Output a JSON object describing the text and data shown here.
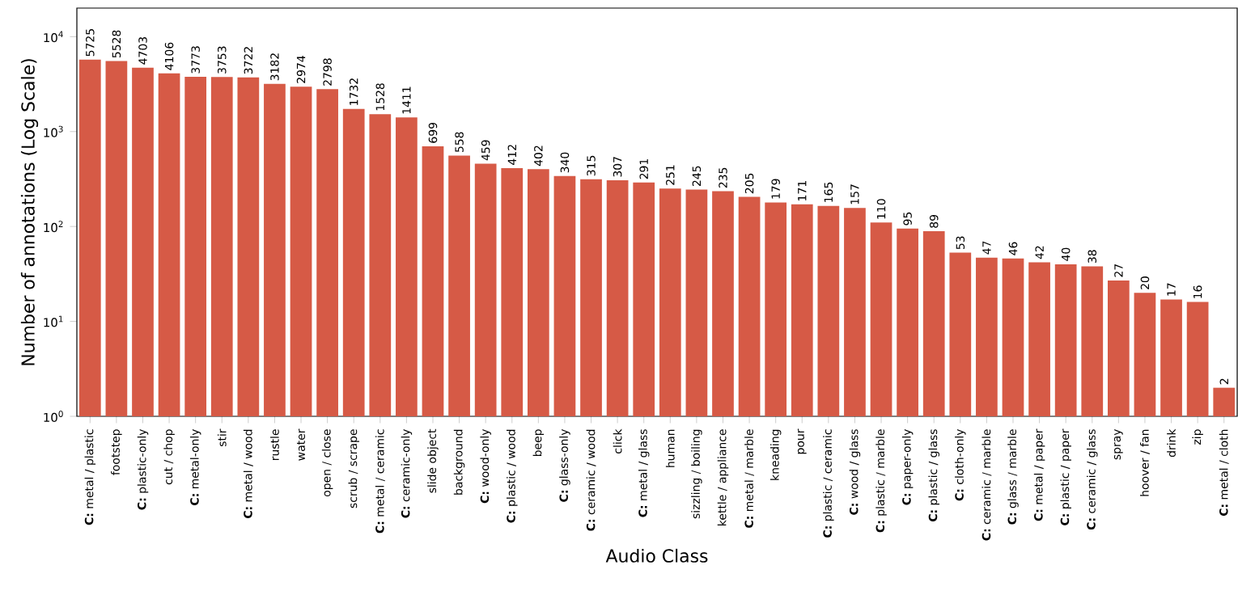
{
  "chart_data": {
    "type": "bar",
    "xlabel": "Audio Class",
    "ylabel": "Number of annotations (Log Scale)",
    "categories": [
      "**C:** metal / plastic",
      "footstep",
      "**C:** plastic-only",
      "cut / chop",
      "**C:** metal-only",
      "stir",
      "**C:** metal / wood",
      "rustle",
      "water",
      "open / close",
      "scrub / scrape",
      "**C:** metal / ceramic",
      "**C:** ceramic-only",
      "slide object",
      "background",
      "**C:** wood-only",
      "**C:** plastic / wood",
      "beep",
      "**C:** glass-only",
      "**C:** ceramic / wood",
      "click",
      "**C:** metal / glass",
      "human",
      "sizzling / boiling",
      "kettle / appliance",
      "**C:** metal / marble",
      "kneading",
      "pour",
      "**C:** plastic / ceramic",
      "**C:** wood / glass",
      "**C:** plastic / marble",
      "**C:** paper-only",
      "**C:** plastic / glass",
      "**C:** cloth-only",
      "**C:** ceramic / marble",
      "**C:** glass / marble",
      "**C:** metal / paper",
      "**C:** plastic / paper",
      "**C:** ceramic / glass",
      "spray",
      "hoover / fan",
      "drink",
      "zip",
      "**C:** metal / cloth"
    ],
    "values": [
      5725,
      5528,
      4703,
      4106,
      3773,
      3753,
      3722,
      3182,
      2974,
      2798,
      1732,
      1528,
      1411,
      699,
      558,
      459,
      412,
      402,
      340,
      315,
      307,
      291,
      251,
      245,
      235,
      205,
      179,
      171,
      165,
      157,
      110,
      95,
      89,
      53,
      47,
      46,
      42,
      40,
      38,
      27,
      20,
      17,
      16,
      2
    ],
    "color": "#d65a46",
    "log": "y",
    "ylim": [
      1,
      20000
    ],
    "yticks": [
      {
        "value": 1,
        "label": "10$^{0}$"
      },
      {
        "value": 10,
        "label": "10$^{1}$"
      },
      {
        "value": 100,
        "label": "10$^{2}$"
      },
      {
        "value": 1000,
        "label": "10$^{3}$"
      },
      {
        "value": 10000,
        "label": "10$^{4}$"
      }
    ],
    "data_labels": true
  }
}
